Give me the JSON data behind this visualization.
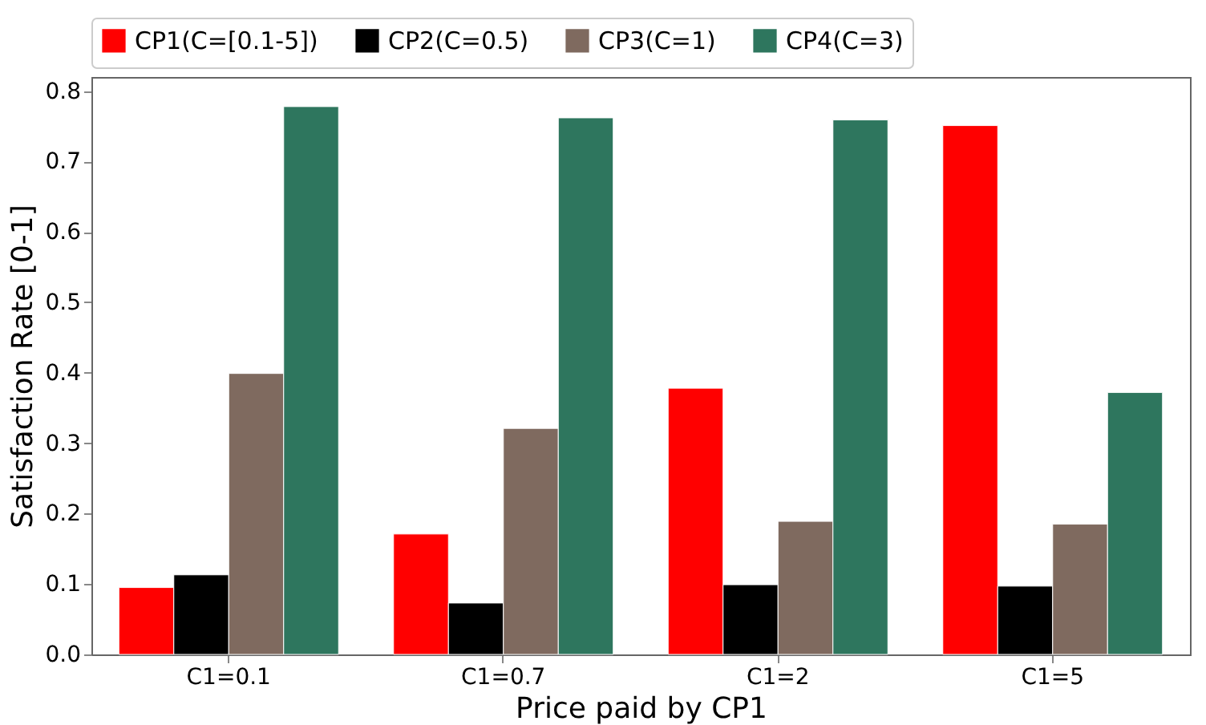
{
  "chart_data": {
    "type": "bar",
    "xlabel": "Price paid by CP1",
    "ylabel": "Satisfaction Rate [0-1]",
    "categories": [
      "C1=0.1",
      "C1=0.7",
      "C1=2",
      "C1=5"
    ],
    "series": [
      {
        "name": "CP1(C=[0.1-5])",
        "color": "#ff0000",
        "values": [
          0.095,
          0.171,
          0.378,
          0.751
        ]
      },
      {
        "name": "CP2(C=0.5)",
        "color": "#000000",
        "values": [
          0.113,
          0.073,
          0.099,
          0.097
        ]
      },
      {
        "name": "CP3(C=1)",
        "color": "#7f6a5f",
        "values": [
          0.399,
          0.321,
          0.189,
          0.185
        ]
      },
      {
        "name": "CP4(C=3)",
        "color": "#2e765e",
        "values": [
          0.778,
          0.762,
          0.759,
          0.372
        ]
      }
    ],
    "ylim": [
      0,
      0.82
    ],
    "yticks": [
      {
        "value": 0,
        "label": "0.0"
      },
      0.1,
      0.2,
      0.3,
      0.4,
      0.5,
      0.6,
      0.7,
      0.8
    ],
    "grid": false,
    "legend": "top"
  }
}
